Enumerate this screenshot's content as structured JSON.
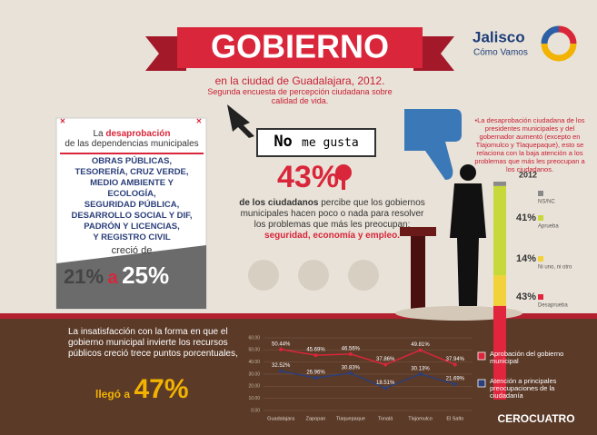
{
  "header": {
    "title": "GOBIERNO",
    "subtitle": "en la ciudad de Guadalajara, 2012.",
    "subtitle2": "Segunda encuesta de percepción ciudadana sobre calidad de vida."
  },
  "logo": {
    "name": "Jalisco",
    "tagline": "Cómo Vamos"
  },
  "card": {
    "intro_prefix": "La",
    "intro_bold": "desaprobación",
    "intro_rest": "de las dependencias municipales",
    "items": [
      "OBRAS PÚBLICAS,",
      "TESORERÍA, CRUZ VERDE,",
      "MEDIO AMBIENTE Y",
      "ECOLOGÍA,",
      "SEGURIDAD PÚBLICA,",
      "DESARROLLO SOCIAL Y DIF,",
      "PADRÓN Y LICENCIAS,",
      "Y REGISTRO CIVIL"
    ],
    "grew": "creció de",
    "from": "21%",
    "to_word": "a",
    "to": "25%"
  },
  "sign": {
    "bold": "No",
    "rest": "me gusta"
  },
  "center": {
    "big": "43%",
    "bold": "de los ciudadanos",
    "text": "percibe que los gobiernos municipales hacen poco o nada para resolver los problemas que más les preocupan:",
    "highlight": "seguridad, economía y empleo."
  },
  "note": "•La desaprobación ciudadana de los presidentes municipales y del gobernador aumentó (excepto en Tlajomulco y Tlaquepaque), esto se relaciona con la baja atención a los problemas que más les preocupan a los ciudadanos.",
  "bottom": {
    "text": "La insatisfacción con la forma en que el gobierno municipal invierte los recursos públicos creció trece puntos porcentuales,",
    "reached": "llegó a",
    "big": "47%"
  },
  "footer": "CEROCUATRO",
  "chart_data": [
    {
      "type": "line",
      "categories": [
        "Guadalajara",
        "Zapopan",
        "Tlaquepaque",
        "Tonalá",
        "Tlajomulco",
        "El Salto"
      ],
      "series": [
        {
          "name": "Aprobación del gobierno municipal",
          "color": "#d9263a",
          "values": [
            50.44,
            45.69,
            46.56,
            37.86,
            49.81,
            37.94
          ],
          "value_labels": [
            "50.44%",
            "45.69%",
            "46.56%",
            "37.86%",
            "49.81%",
            "37.94%"
          ]
        },
        {
          "name": "Atención a principales preocupaciones de la ciudadanía",
          "color": "#2b3f7a",
          "values": [
            32.52,
            26.96,
            30.83,
            18.51,
            30.13,
            21.69
          ],
          "value_labels": [
            "32.52%",
            "26.96%",
            "30.83%",
            "18.51%",
            "30.13%",
            "21.69%"
          ]
        }
      ],
      "ylim": [
        0,
        60
      ],
      "yticks": [
        {
          "value": 0,
          "label": "0.00"
        },
        {
          "value": 10,
          "label": "10.00"
        },
        {
          "value": 20,
          "label": "20.00"
        },
        {
          "value": 30,
          "label": "30.00"
        },
        {
          "value": 40,
          "label": "40.00"
        },
        {
          "value": 50,
          "label": "50.00"
        },
        {
          "value": 60,
          "label": "60.00"
        }
      ],
      "grid": true
    },
    {
      "type": "stacked_bar",
      "categories": [
        "2012"
      ],
      "series": [
        {
          "name": "Desaprueba",
          "color": "#e0253c",
          "values": [
            43
          ],
          "value_labels": [
            "43%"
          ]
        },
        {
          "name": "Ni uno, ni otro",
          "color": "#f2d23a",
          "values": [
            14
          ],
          "value_labels": [
            "14%"
          ]
        },
        {
          "name": "Aprueba",
          "color": "#c7d93a",
          "values": [
            41
          ],
          "value_labels": [
            "41%"
          ]
        },
        {
          "name": "NS/NC",
          "color": "#8a8a8a",
          "values": [
            2
          ]
        }
      ],
      "ylim": [
        0,
        100
      ]
    }
  ]
}
